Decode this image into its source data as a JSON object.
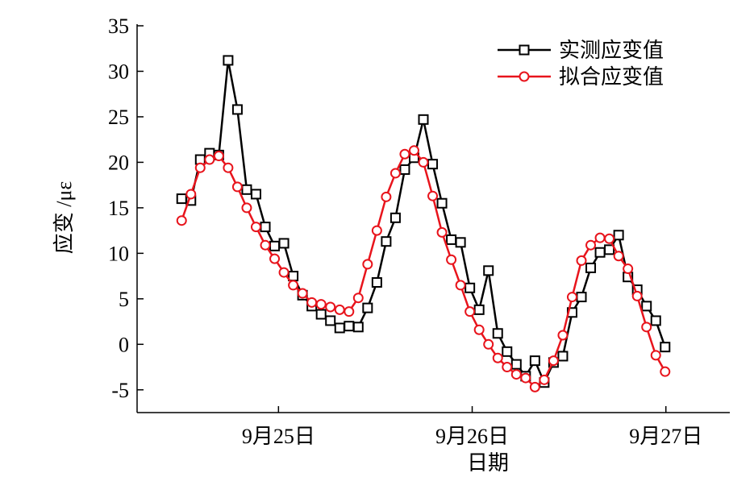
{
  "chart_data": {
    "type": "line",
    "xlabel": "日期",
    "ylabel": "应变 /με",
    "x": [
      24.5,
      24.548,
      24.596,
      24.644,
      24.692,
      24.74,
      24.788,
      24.836,
      24.884,
      24.932,
      24.98,
      25.028,
      25.076,
      25.124,
      25.172,
      25.22,
      25.268,
      25.316,
      25.364,
      25.412,
      25.46,
      25.508,
      25.556,
      25.604,
      25.652,
      25.7,
      25.748,
      25.796,
      25.844,
      25.892,
      25.94,
      25.988,
      26.036,
      26.084,
      26.132,
      26.18,
      26.228,
      26.276,
      26.324,
      26.372,
      26.42,
      26.468,
      26.516,
      26.564,
      26.612,
      26.66,
      26.708,
      26.756,
      26.804,
      26.852,
      26.9,
      26.948,
      26.996
    ],
    "series": [
      {
        "name": "实测应变值",
        "color": "#000000",
        "marker": "square",
        "values": [
          16.0,
          15.8,
          20.3,
          21.0,
          20.8,
          31.2,
          25.8,
          17.0,
          16.5,
          12.9,
          10.8,
          11.1,
          7.5,
          5.4,
          4.2,
          3.3,
          2.6,
          1.8,
          2.0,
          1.9,
          4.0,
          6.8,
          11.3,
          13.9,
          19.2,
          20.5,
          24.7,
          19.8,
          15.5,
          11.5,
          11.2,
          6.2,
          3.8,
          8.1,
          1.2,
          -0.8,
          -2.2,
          -3.5,
          -1.8,
          -4.2,
          -2.0,
          -1.3,
          3.5,
          5.2,
          8.4,
          10.1,
          10.4,
          12.0,
          7.4,
          6.0,
          4.2,
          2.6,
          -0.3
        ]
      },
      {
        "name": "拟合应变值",
        "color": "#e8141c",
        "marker": "circle",
        "values": [
          13.6,
          16.5,
          19.4,
          20.3,
          20.7,
          19.4,
          17.3,
          15,
          12.9,
          10.9,
          9.4,
          7.9,
          6.5,
          5.6,
          4.6,
          4.4,
          4.1,
          3.8,
          3.6,
          5.1,
          8.8,
          12.5,
          16.2,
          18.8,
          20.9,
          21.3,
          20,
          16.3,
          12.3,
          9.3,
          6.5,
          3.6,
          1.6,
          0,
          -1.5,
          -2.5,
          -3.3,
          -3.7,
          -4.7,
          -3.9,
          -1.8,
          1.0,
          5.2,
          9.2,
          10.9,
          11.7,
          11.6,
          9.7,
          8.3,
          5.3,
          1.9,
          -1.2,
          -3.0
        ]
      }
    ],
    "xlim": [
      24.27,
      27.33
    ],
    "xticks": [
      {
        "value": 25,
        "label": "9月25日"
      },
      {
        "value": 26,
        "label": "9月26日"
      },
      {
        "value": 27,
        "label": "9月27日"
      }
    ],
    "ylim": [
      -7.5,
      35
    ],
    "yticks": [
      -5,
      0,
      5,
      10,
      15,
      20,
      25,
      30,
      35
    ],
    "legend": "top-right"
  }
}
